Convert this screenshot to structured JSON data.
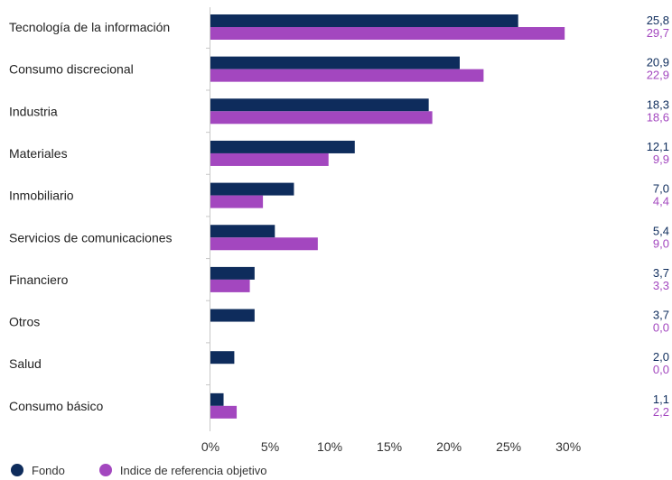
{
  "colors": {
    "fondo": "#0e2c5c",
    "indice": "#a347bf"
  },
  "chart_data": {
    "type": "bar",
    "orientation": "horizontal",
    "categories": [
      "Tecnología de la información",
      "Consumo discrecional",
      "Industria",
      "Materiales",
      "Inmobiliario",
      "Servicios de comunicaciones",
      "Financiero",
      "Otros",
      "Salud",
      "Consumo básico"
    ],
    "series": [
      {
        "name": "Fondo",
        "values": [
          25.8,
          20.9,
          18.3,
          12.1,
          7.0,
          5.4,
          3.7,
          3.7,
          2.0,
          1.1
        ],
        "labels": [
          "25,8",
          "20,9",
          "18,3",
          "12,1",
          "7,0",
          "5,4",
          "3,7",
          "3,7",
          "2,0",
          "1,1"
        ]
      },
      {
        "name": "Indice de referencia objetivo",
        "values": [
          29.7,
          22.9,
          18.6,
          9.9,
          4.4,
          9.0,
          3.3,
          0.0,
          0.0,
          2.2
        ],
        "labels": [
          "29,7",
          "22,9",
          "18,6",
          "9,9",
          "4,4",
          "9,0",
          "3,3",
          "0,0",
          "0,0",
          "2,2"
        ]
      }
    ],
    "xticks": [
      0,
      5,
      10,
      15,
      20,
      25,
      30
    ],
    "xtick_labels": [
      "0%",
      "5%",
      "10%",
      "15%",
      "20%",
      "25%",
      "30%"
    ],
    "xlim": [
      0,
      35
    ],
    "grid": false,
    "legend_position": "bottom-left"
  }
}
